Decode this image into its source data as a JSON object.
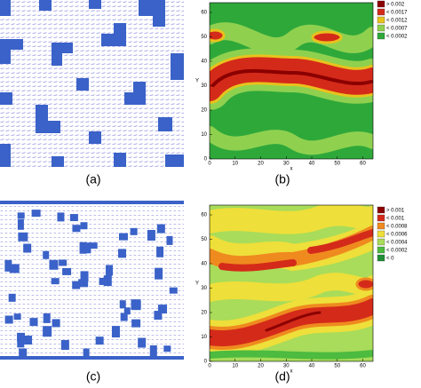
{
  "panels": [
    {
      "label": "(a)"
    },
    {
      "label": "(b)",
      "x_label": "x",
      "y_label": "Y",
      "xlim": [
        0,
        64
      ],
      "ylim": [
        0,
        64
      ],
      "xticks": [
        0,
        10,
        20,
        30,
        40,
        50,
        60
      ],
      "yticks": [
        0,
        10,
        20,
        30,
        40,
        50,
        60
      ],
      "legend": [
        {
          "label": "> 0.002",
          "color": "#8b0000"
        },
        {
          "label": "< 0.0017",
          "color": "#d42a1a"
        },
        {
          "label": "< 0.0012",
          "color": "#e9c21c"
        },
        {
          "label": "< 0.0007",
          "color": "#8fd14f"
        },
        {
          "label": "< 0.0002",
          "color": "#2fa83a"
        }
      ]
    },
    {
      "label": "(c)"
    },
    {
      "label": "(d)",
      "x_label": "x",
      "y_label": "Y",
      "xlim": [
        0,
        64
      ],
      "ylim": [
        0,
        64
      ],
      "xticks": [
        0,
        10,
        20,
        30,
        40,
        50,
        60
      ],
      "yticks": [
        0,
        10,
        20,
        30,
        40,
        50,
        60
      ],
      "legend": [
        {
          "label": "> 0.001",
          "color": "#8b0000"
        },
        {
          "label": "< 0.001",
          "color": "#d42a1a"
        },
        {
          "label": "< 0.0008",
          "color": "#ef8a1f"
        },
        {
          "label": "< 0.0006",
          "color": "#eedf3a"
        },
        {
          "label": "< 0.0004",
          "color": "#a8dc5a"
        },
        {
          "label": "< 0.0002",
          "color": "#4cbb3f"
        },
        {
          "label": "< 0",
          "color": "#1f8f35"
        }
      ]
    }
  ]
}
